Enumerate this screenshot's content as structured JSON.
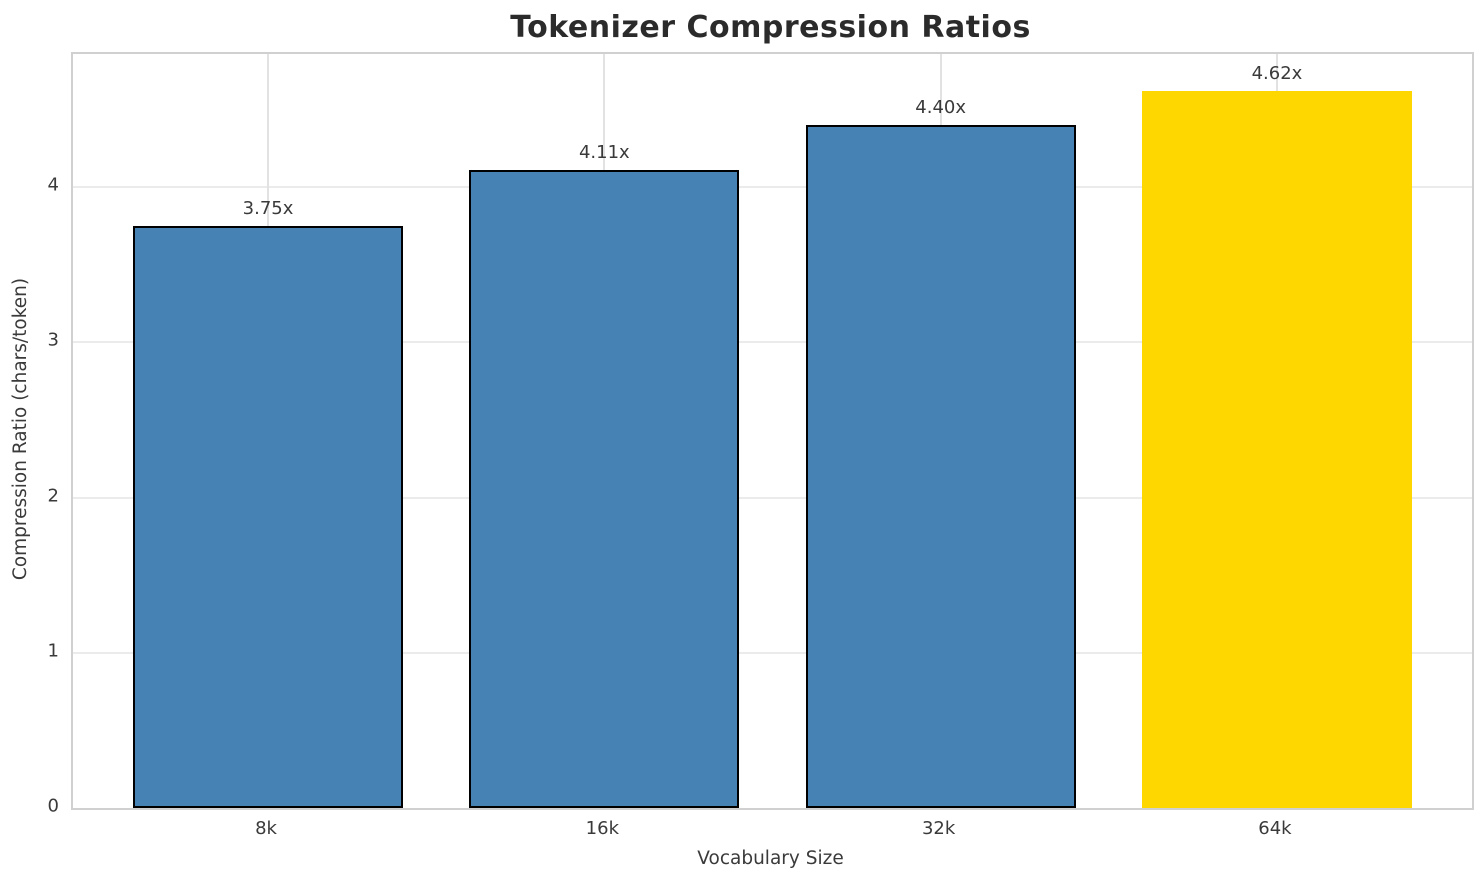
{
  "chart_data": {
    "type": "bar",
    "title": "Tokenizer Compression Ratios",
    "xlabel": "Vocabulary Size",
    "ylabel": "Compression Ratio (chars/token)",
    "categories": [
      "8k",
      "16k",
      "32k",
      "64k"
    ],
    "values": [
      3.75,
      4.11,
      4.4,
      4.62
    ],
    "bar_labels": [
      "3.75x",
      "4.11x",
      "4.40x",
      "4.62x"
    ],
    "yticks": [
      0,
      1,
      2,
      3,
      4
    ],
    "ylim": [
      0,
      4.857
    ],
    "grid": true,
    "legend": "none",
    "colors": {
      "bar_default": "#4682B4",
      "bar_highlight": "#FFD700",
      "bar_edge": "#000000",
      "grid": "#e8e8e8",
      "spine": "#d0d0d0",
      "text": "#3a3a3a",
      "title": "#2b2b2b"
    },
    "bar_colors": [
      "#4682B4",
      "#4682B4",
      "#4682B4",
      "#FFD700"
    ],
    "bar_edge_widths": [
      2,
      2,
      2,
      0
    ]
  }
}
